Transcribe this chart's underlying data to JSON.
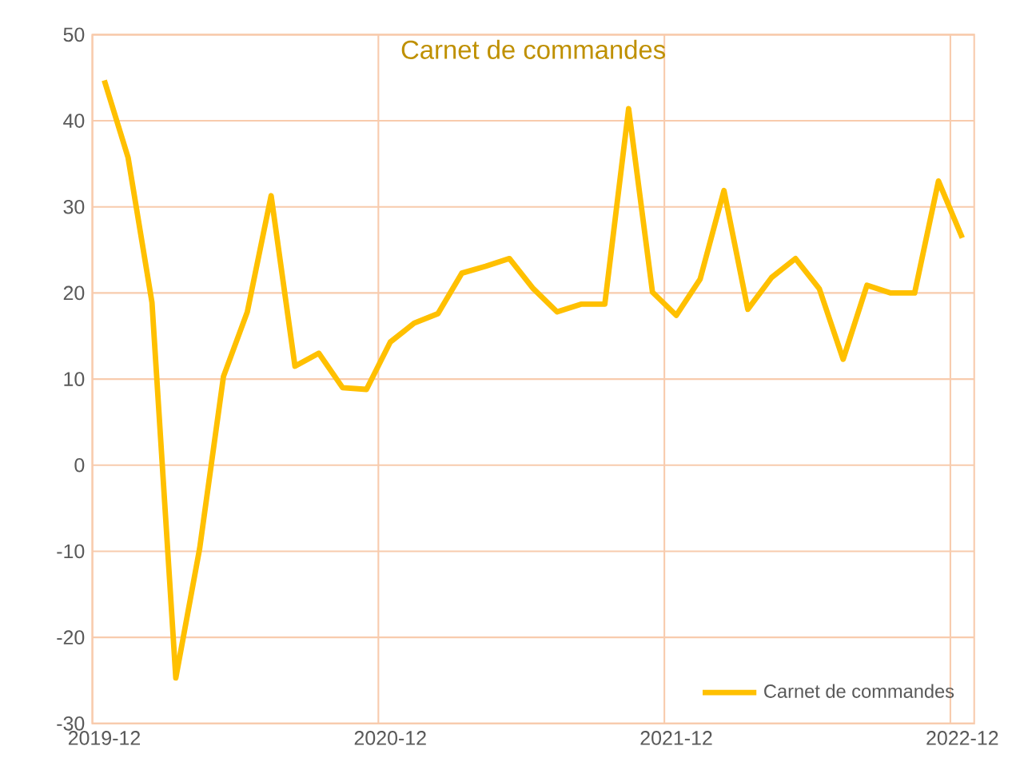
{
  "chart_data": {
    "type": "line",
    "title": "Carnet de commandes",
    "categories": [
      "2019-12",
      null,
      null,
      null,
      null,
      null,
      null,
      null,
      null,
      null,
      null,
      null,
      "2020-12",
      null,
      null,
      null,
      null,
      null,
      null,
      null,
      null,
      null,
      null,
      null,
      "2021-12",
      null,
      null,
      null,
      null,
      null,
      null,
      null,
      null,
      null,
      null,
      null,
      "2022-12"
    ],
    "series": [
      {
        "name": "Carnet de commandes",
        "color": "#ffc000",
        "values": [
          44.7,
          35.7,
          18.9,
          -24.7,
          -9.7,
          10.3,
          17.8,
          31.3,
          11.5,
          13.0,
          9.0,
          8.8,
          14.3,
          16.5,
          17.6,
          22.3,
          23.1,
          24.0,
          20.5,
          17.8,
          18.7,
          18.7,
          41.4,
          20.1,
          17.4,
          21.6,
          31.9,
          18.1,
          21.8,
          24.0,
          20.5,
          12.3,
          20.9,
          20.0,
          20.0,
          33.0,
          26.4
        ]
      }
    ],
    "ylim": [
      -30,
      50
    ],
    "yticks": [
      -30,
      -20,
      -10,
      0,
      10,
      20,
      30,
      40,
      50
    ],
    "grid": true,
    "legend": "bottom right",
    "marker": "none",
    "line_style": "solid"
  }
}
